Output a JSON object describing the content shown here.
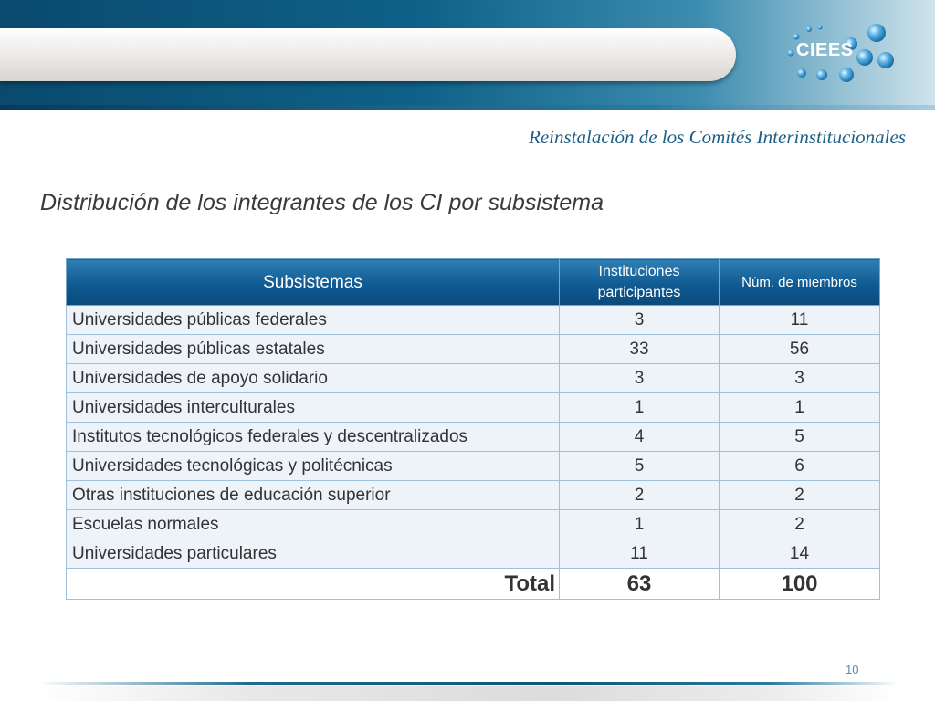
{
  "header": {
    "logo_text": "CIEES",
    "subtitle": "Reinstalación de los Comités Interinstitucionales"
  },
  "heading": "Distribución de los integrantes de los CI por subsistema",
  "table": {
    "columns": [
      "Subsistemas",
      "Instituciones participantes",
      "Núm. de miembros"
    ],
    "rows": [
      {
        "subsistema": "Universidades públicas federales",
        "instituciones": "3",
        "miembros": "11"
      },
      {
        "subsistema": "Universidades públicas estatales",
        "instituciones": "33",
        "miembros": "56"
      },
      {
        "subsistema": "Universidades de apoyo solidario",
        "instituciones": "3",
        "miembros": "3"
      },
      {
        "subsistema": "Universidades interculturales",
        "instituciones": "1",
        "miembros": "1"
      },
      {
        "subsistema": "Institutos tecnológicos federales y descentralizados",
        "instituciones": "4",
        "miembros": "5"
      },
      {
        "subsistema": "Universidades tecnológicas y politécnicas",
        "instituciones": "5",
        "miembros": "6"
      },
      {
        "subsistema": "Otras instituciones de educación superior",
        "instituciones": "2",
        "miembros": "2"
      },
      {
        "subsistema": "Escuelas normales",
        "instituciones": "1",
        "miembros": "2"
      },
      {
        "subsistema": "Universidades particulares",
        "instituciones": "11",
        "miembros": "14"
      }
    ],
    "total": {
      "label": "Total",
      "instituciones": "63",
      "miembros": "100"
    }
  },
  "page_number": "10",
  "colors": {
    "header_dark": "#0a4a6e",
    "table_header": "#0f5a92",
    "row_bg": "#eef3f9",
    "subtitle": "#1f5f86"
  }
}
